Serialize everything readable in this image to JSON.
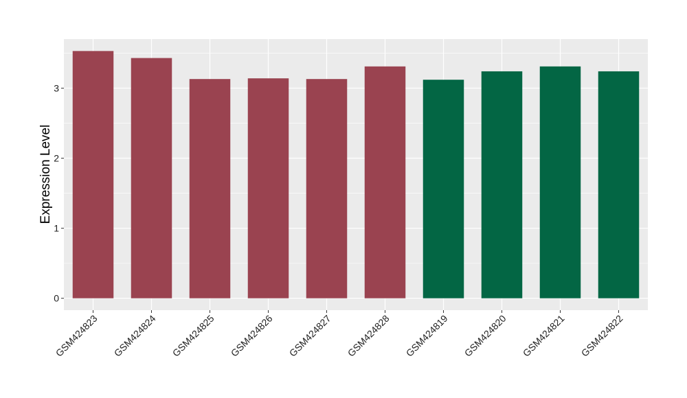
{
  "chart_data": {
    "type": "bar",
    "title": "",
    "xlabel": "",
    "ylabel": "Expression Level",
    "categories": [
      "GSM424823",
      "GSM424824",
      "GSM424825",
      "GSM424826",
      "GSM424827",
      "GSM424828",
      "GSM424819",
      "GSM424820",
      "GSM424821",
      "GSM424822"
    ],
    "values": [
      3.53,
      3.43,
      3.13,
      3.14,
      3.13,
      3.31,
      3.12,
      3.24,
      3.31,
      3.24
    ],
    "bar_colors": [
      "#9a4350",
      "#9a4350",
      "#9a4350",
      "#9a4350",
      "#9a4350",
      "#9a4350",
      "#036644",
      "#036644",
      "#036644",
      "#036644"
    ],
    "ylim": [
      -0.17,
      3.7
    ],
    "yticks": [
      0,
      1,
      2,
      3
    ],
    "grid": true,
    "panel_background": "#ebebeb",
    "grid_color": "#ffffff"
  }
}
